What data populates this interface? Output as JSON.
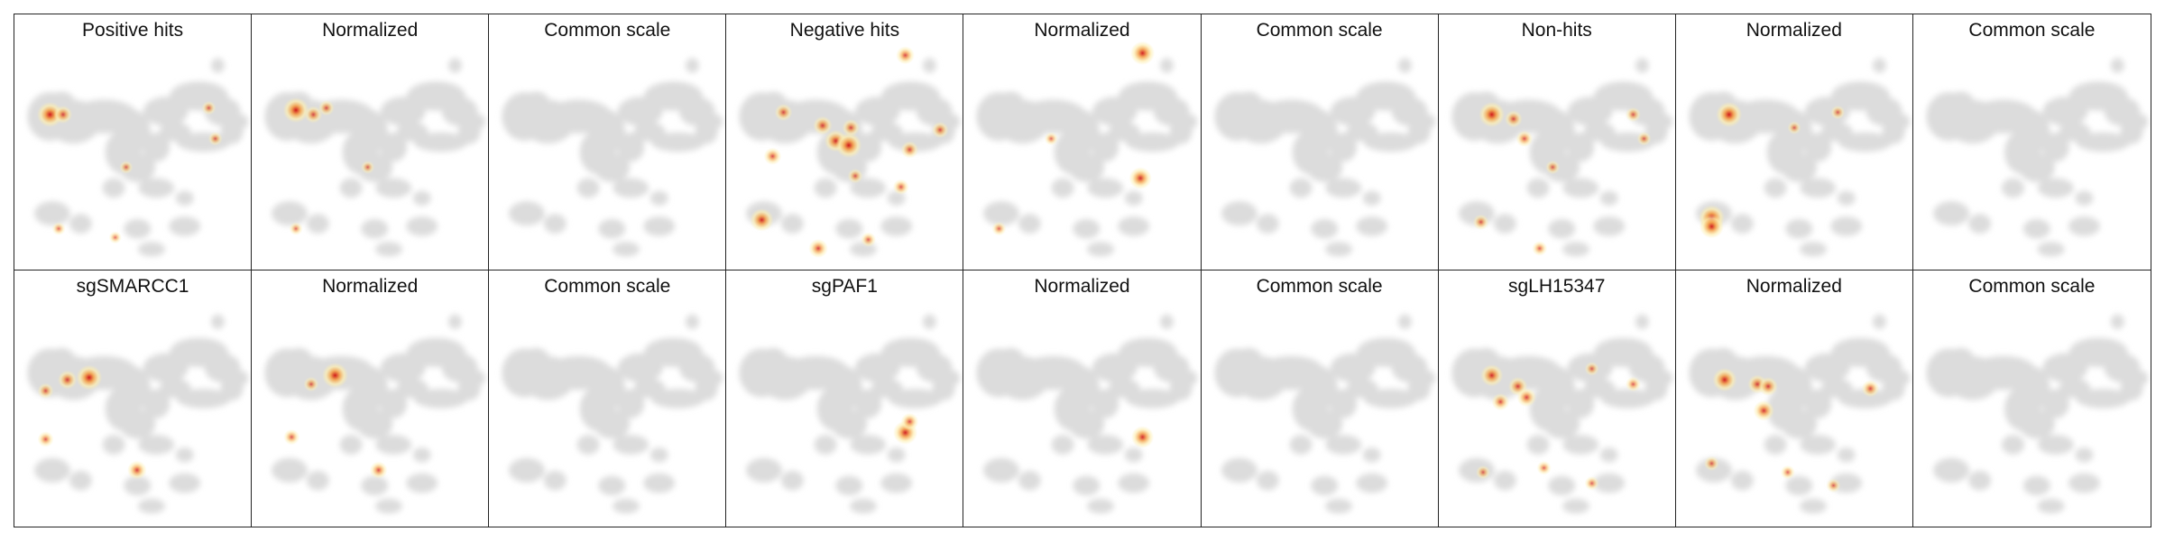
{
  "figure": {
    "panels": [
      {
        "title": "Positive hits"
      },
      {
        "title": "Normalized"
      },
      {
        "title": "Common scale"
      },
      {
        "title": "Negative hits"
      },
      {
        "title": "Normalized"
      },
      {
        "title": "Common scale"
      },
      {
        "title": "Non-hits"
      },
      {
        "title": "Normalized"
      },
      {
        "title": "Common scale"
      },
      {
        "title": "sgSMARCC1"
      },
      {
        "title": "Normalized"
      },
      {
        "title": "Common scale"
      },
      {
        "title": "sgPAF1"
      },
      {
        "title": "Normalized"
      },
      {
        "title": "Common scale"
      },
      {
        "title": "sgLH15347"
      },
      {
        "title": "Normalized"
      },
      {
        "title": "Common scale"
      }
    ]
  },
  "colors": {
    "background_cells": "#dcdcdc",
    "density_low": "#fdeeb0",
    "density_mid": "#f3a04a",
    "density_high": "#d01818"
  },
  "chart_data": {
    "type": "heatmap",
    "description_kind": "embedding density overlay",
    "hotspots": [
      [
        [
          0.12,
          0.34,
          1.0
        ],
        [
          0.18,
          0.34,
          0.55
        ],
        [
          0.85,
          0.31,
          0.3
        ],
        [
          0.88,
          0.45,
          0.3
        ],
        [
          0.16,
          0.86,
          0.25
        ],
        [
          0.47,
          0.58,
          0.25
        ],
        [
          0.42,
          0.9,
          0.2
        ]
      ],
      [
        [
          0.16,
          0.32,
          1.0
        ],
        [
          0.24,
          0.34,
          0.5
        ],
        [
          0.3,
          0.31,
          0.4
        ],
        [
          0.49,
          0.58,
          0.25
        ],
        [
          0.16,
          0.86,
          0.25
        ]
      ],
      [],
      [
        [
          0.22,
          0.33,
          0.5
        ],
        [
          0.4,
          0.39,
          0.6
        ],
        [
          0.46,
          0.46,
          0.8
        ],
        [
          0.52,
          0.48,
          1.0
        ],
        [
          0.53,
          0.4,
          0.5
        ],
        [
          0.8,
          0.5,
          0.5
        ],
        [
          0.94,
          0.41,
          0.45
        ],
        [
          0.78,
          0.07,
          0.55
        ],
        [
          0.12,
          0.82,
          0.85
        ],
        [
          0.55,
          0.62,
          0.35
        ],
        [
          0.76,
          0.67,
          0.4
        ],
        [
          0.61,
          0.91,
          0.35
        ],
        [
          0.38,
          0.95,
          0.6
        ],
        [
          0.17,
          0.53,
          0.5
        ]
      ],
      [
        [
          0.78,
          0.06,
          0.9
        ],
        [
          0.77,
          0.63,
          0.8
        ],
        [
          0.12,
          0.86,
          0.3
        ],
        [
          0.36,
          0.45,
          0.25
        ]
      ],
      [],
      [
        [
          0.2,
          0.34,
          1.0
        ],
        [
          0.3,
          0.36,
          0.5
        ],
        [
          0.35,
          0.45,
          0.45
        ],
        [
          0.48,
          0.58,
          0.3
        ],
        [
          0.85,
          0.34,
          0.35
        ],
        [
          0.9,
          0.45,
          0.3
        ],
        [
          0.15,
          0.83,
          0.4
        ],
        [
          0.42,
          0.95,
          0.35
        ]
      ],
      [
        [
          0.2,
          0.34,
          1.0
        ],
        [
          0.12,
          0.81,
          1.0
        ],
        [
          0.12,
          0.85,
          0.9
        ],
        [
          0.5,
          0.4,
          0.25
        ],
        [
          0.7,
          0.33,
          0.3
        ]
      ],
      [],
      [
        [
          0.3,
          0.37,
          1.0
        ],
        [
          0.2,
          0.38,
          0.6
        ],
        [
          0.1,
          0.43,
          0.4
        ],
        [
          0.1,
          0.65,
          0.4
        ],
        [
          0.52,
          0.79,
          0.6
        ]
      ],
      [
        [
          0.34,
          0.36,
          1.0
        ],
        [
          0.23,
          0.4,
          0.35
        ],
        [
          0.14,
          0.64,
          0.4
        ],
        [
          0.54,
          0.79,
          0.5
        ]
      ],
      [],
      [
        [
          0.78,
          0.62,
          0.9
        ],
        [
          0.8,
          0.57,
          0.5
        ]
      ],
      [
        [
          0.78,
          0.64,
          0.8
        ]
      ],
      [],
      [
        [
          0.2,
          0.36,
          0.8
        ],
        [
          0.32,
          0.41,
          0.6
        ],
        [
          0.36,
          0.46,
          0.6
        ],
        [
          0.24,
          0.48,
          0.5
        ],
        [
          0.66,
          0.33,
          0.3
        ],
        [
          0.85,
          0.4,
          0.35
        ],
        [
          0.16,
          0.8,
          0.3
        ],
        [
          0.44,
          0.78,
          0.3
        ],
        [
          0.66,
          0.85,
          0.3
        ]
      ],
      [
        [
          0.18,
          0.38,
          0.9
        ],
        [
          0.33,
          0.4,
          0.6
        ],
        [
          0.38,
          0.41,
          0.6
        ],
        [
          0.36,
          0.52,
          0.7
        ],
        [
          0.85,
          0.42,
          0.5
        ],
        [
          0.12,
          0.76,
          0.35
        ],
        [
          0.68,
          0.86,
          0.3
        ],
        [
          0.47,
          0.8,
          0.3
        ]
      ],
      []
    ]
  }
}
